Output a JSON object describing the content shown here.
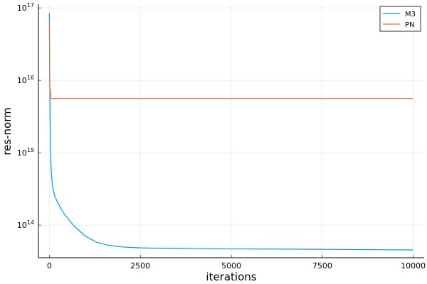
{
  "chart_data": {
    "type": "line",
    "title": "",
    "xlabel": "iterations",
    "ylabel": "res-norm",
    "yscale": "log10",
    "xlim": [
      -300,
      10300
    ],
    "ylim_log10": [
      13.55,
      17.05
    ],
    "grid": true,
    "legend_position": "top-right",
    "x_ticks": [
      0,
      2500,
      5000,
      7500,
      10000
    ],
    "x_tick_labels": [
      "0",
      "2500",
      "5000",
      "7500",
      "10000"
    ],
    "y_ticks_log10": [
      14,
      15,
      16,
      17
    ],
    "y_tick_labels": [
      {
        "base": "10",
        "exp": "14"
      },
      {
        "base": "10",
        "exp": "15"
      },
      {
        "base": "10",
        "exp": "16"
      },
      {
        "base": "10",
        "exp": "17"
      }
    ],
    "series": [
      {
        "name": "M3",
        "color": "#009AFA",
        "x": [
          0,
          5,
          10,
          20,
          30,
          50,
          70,
          100,
          150,
          200,
          300,
          400,
          500,
          700,
          1000,
          1300,
          1600,
          2000,
          2500,
          3000,
          4000,
          5000,
          6000,
          7000,
          8000,
          9000,
          10000
        ],
        "y": [
          8.5e+16,
          5e+16,
          1.5e+16,
          3000000000000000.0,
          1300000000000000.0,
          600000000000000.0,
          420000000000000.0,
          320000000000000.0,
          250000000000000.0,
          220000000000000.0,
          175000000000000.0,
          145000000000000.0,
          125000000000000.0,
          95000000000000.0,
          70000000000000.0,
          58000000000000.0,
          53000000000000.0,
          50000000000000.0,
          48500000000000.0,
          48000000000000.0,
          47500000000000.0,
          47000000000000.0,
          46800000000000.0,
          46500000000000.0,
          46200000000000.0,
          45800000000000.0,
          45500000000000.0
        ]
      },
      {
        "name": "PN",
        "color": "#E26F46",
        "x": [
          0,
          10,
          20,
          30,
          40,
          60,
          100,
          500,
          1000,
          2500,
          5000,
          7500,
          10000
        ],
        "y": [
          6.5e+16,
          8000000000000000.0,
          6500000000000000.0,
          7500000000000000.0,
          5700000000000000.0,
          5600000000000000.0,
          5600000000000000.0,
          5600000000000000.0,
          5600000000000000.0,
          5600000000000000.0,
          5600000000000000.0,
          5600000000000000.0,
          5600000000000000.0
        ]
      }
    ]
  }
}
